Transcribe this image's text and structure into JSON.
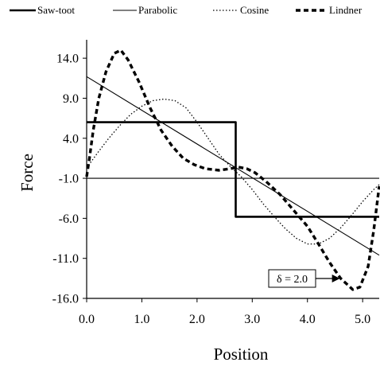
{
  "chart_data": {
    "type": "line",
    "xlabel": "Position",
    "ylabel": "Force",
    "xlim": [
      0,
      5.3
    ],
    "ylim": [
      -16,
      16.3
    ],
    "x_ticks": [
      0,
      1,
      2,
      3,
      4,
      5
    ],
    "x_tick_labels": [
      "0.0",
      "1.0",
      "2.0",
      "3.0",
      "4.0",
      "5.0"
    ],
    "y_ticks": [
      14,
      9,
      4,
      -1,
      -6,
      -11,
      -16
    ],
    "y_tick_labels": [
      "14.0",
      "9.0",
      "4.0",
      "-1.0",
      "-6.0",
      "-11.0",
      "-16.0"
    ],
    "grid": false,
    "legend_position": "top",
    "annotation": {
      "text": "δ = 2.0",
      "arrow_to": {
        "x": 4.82,
        "y": -13.3
      }
    },
    "series": [
      {
        "name": "Saw-toot",
        "style": "solid-thick",
        "color": "#000000",
        "points": [
          [
            0,
            6
          ],
          [
            2.7,
            6
          ],
          [
            2.7,
            -5.8
          ],
          [
            5.3,
            -5.8
          ]
        ]
      },
      {
        "name": "Parabolic",
        "style": "solid-thin",
        "color": "#000000",
        "points": [
          [
            0,
            11.7
          ],
          [
            5.3,
            -10.6
          ]
        ]
      },
      {
        "name": "Cosine",
        "style": "dotted",
        "color": "#000000",
        "points": [
          [
            0,
            0.3
          ],
          [
            0.2,
            2.2
          ],
          [
            0.4,
            4
          ],
          [
            0.6,
            5.6
          ],
          [
            0.8,
            7
          ],
          [
            1.0,
            8
          ],
          [
            1.2,
            8.7
          ],
          [
            1.4,
            8.9
          ],
          [
            1.6,
            8.7
          ],
          [
            1.8,
            7.8
          ],
          [
            2.0,
            6
          ],
          [
            2.2,
            4
          ],
          [
            2.4,
            2
          ],
          [
            2.6,
            0.5
          ],
          [
            2.8,
            -0.8
          ],
          [
            3.0,
            -2.4
          ],
          [
            3.2,
            -4.2
          ],
          [
            3.4,
            -5.8
          ],
          [
            3.6,
            -7.3
          ],
          [
            3.8,
            -8.5
          ],
          [
            4.0,
            -9.2
          ],
          [
            4.2,
            -9.2
          ],
          [
            4.4,
            -8.5
          ],
          [
            4.6,
            -7.2
          ],
          [
            4.8,
            -5.6
          ],
          [
            5.0,
            -3.9
          ],
          [
            5.2,
            -2.4
          ],
          [
            5.3,
            -1.8
          ]
        ]
      },
      {
        "name": "Lindner",
        "style": "dashed-thick",
        "color": "#000000",
        "points": [
          [
            0,
            -0.8
          ],
          [
            0.05,
            1.5
          ],
          [
            0.12,
            5
          ],
          [
            0.22,
            9
          ],
          [
            0.35,
            12.3
          ],
          [
            0.5,
            14.6
          ],
          [
            0.62,
            15
          ],
          [
            0.75,
            13.8
          ],
          [
            0.95,
            11
          ],
          [
            1.15,
            7.8
          ],
          [
            1.35,
            5
          ],
          [
            1.55,
            3
          ],
          [
            1.75,
            1.5
          ],
          [
            1.95,
            0.7
          ],
          [
            2.15,
            0.2
          ],
          [
            2.4,
            0
          ],
          [
            2.6,
            0.2
          ],
          [
            2.75,
            0.4
          ],
          [
            2.9,
            0.2
          ],
          [
            3.05,
            -0.3
          ],
          [
            3.25,
            -1.4
          ],
          [
            3.5,
            -3
          ],
          [
            3.75,
            -5
          ],
          [
            4.0,
            -7
          ],
          [
            4.2,
            -9.2
          ],
          [
            4.4,
            -11.5
          ],
          [
            4.6,
            -13.5
          ],
          [
            4.82,
            -14.9
          ],
          [
            4.95,
            -14.6
          ],
          [
            5.1,
            -12
          ],
          [
            5.2,
            -7.5
          ],
          [
            5.3,
            -2
          ]
        ]
      }
    ]
  }
}
